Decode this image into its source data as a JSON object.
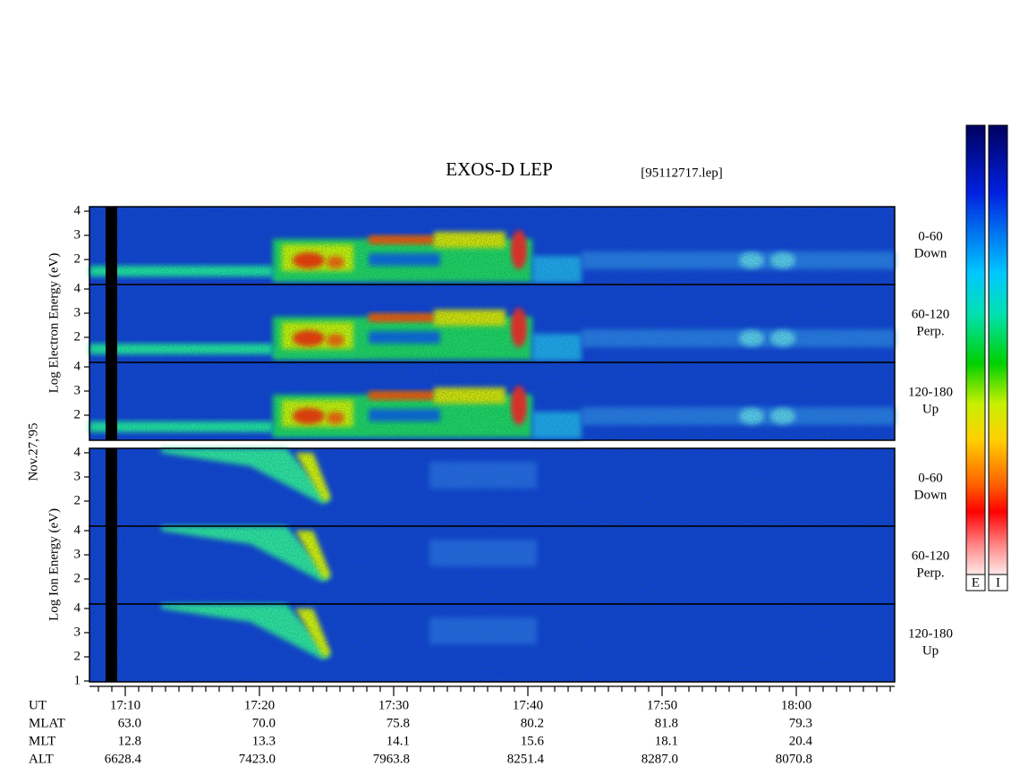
{
  "title": "EXOS-D LEP",
  "file": "[95112717.lep]",
  "date": "Nov.27,'95",
  "electron_axis_label": "Log  Electron  Energy (eV)",
  "ion_axis_label": "Log  Ion  Energy (eV)",
  "electron_panels": [
    {
      "angle": "0-60",
      "direction": "Down",
      "yticks": [
        "4",
        "3",
        "2"
      ]
    },
    {
      "angle": "60-120",
      "direction": "Perp.",
      "yticks": [
        "4",
        "3",
        "2"
      ]
    },
    {
      "angle": "120-180",
      "direction": "Up",
      "yticks": [
        "4",
        "3",
        "2"
      ]
    }
  ],
  "ion_panels": [
    {
      "angle": "0-60",
      "direction": "Down",
      "yticks": [
        "4",
        "3",
        "2"
      ]
    },
    {
      "angle": "60-120",
      "direction": "Perp.",
      "yticks": [
        "4",
        "3",
        "2"
      ]
    },
    {
      "angle": "120-180",
      "direction": "Up",
      "yticks": [
        "4",
        "3",
        "2",
        "1"
      ]
    }
  ],
  "orbit_rows": [
    {
      "label": "UT",
      "values": [
        "17:10",
        "17:20",
        "17:30",
        "17:40",
        "17:50",
        "18:00"
      ]
    },
    {
      "label": "MLAT",
      "values": [
        "63.0",
        "70.0",
        "75.8",
        "80.2",
        "81.8",
        "79.3"
      ]
    },
    {
      "label": "MLT",
      "values": [
        "12.8",
        "13.3",
        "14.1",
        "15.6",
        "18.1",
        "20.4"
      ]
    },
    {
      "label": "ALT",
      "values": [
        "6628.4",
        "7423.0",
        "7963.8",
        "8251.4",
        "8287.0",
        "8070.8"
      ]
    }
  ],
  "colorbars": [
    "E",
    "I"
  ]
}
